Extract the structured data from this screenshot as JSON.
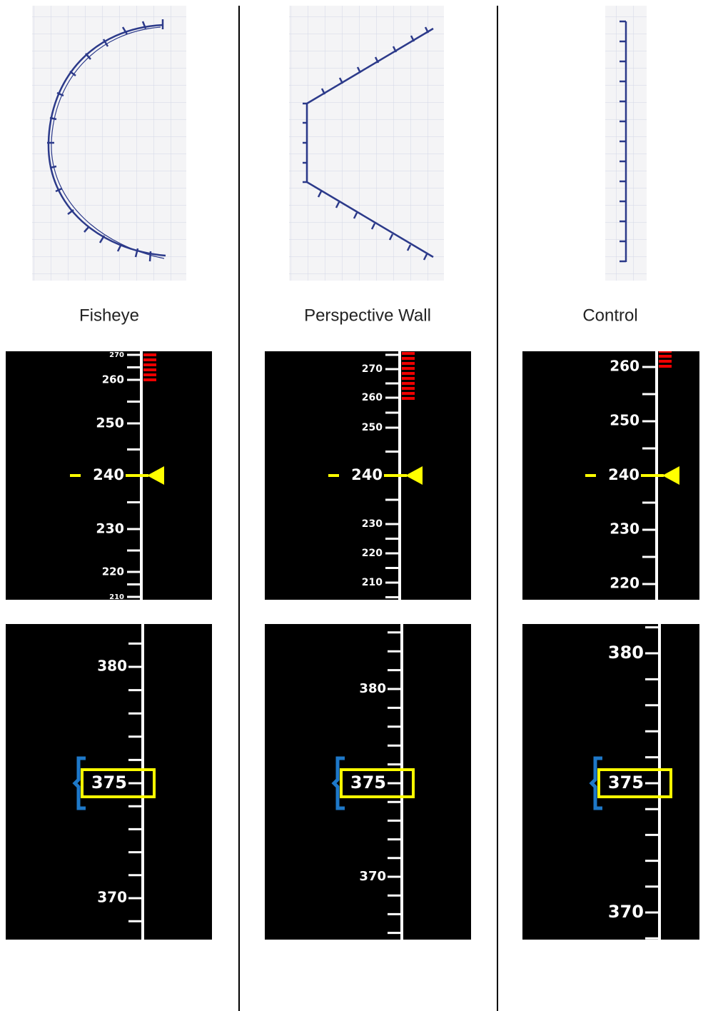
{
  "columns": [
    {
      "label": "Fisheye",
      "speed_tape": {
        "labels": [
          "270",
          "260",
          "250",
          "240",
          "230",
          "220",
          "210"
        ]
      },
      "altitude_tape": {
        "labels": [
          "380",
          "375",
          "370"
        ]
      }
    },
    {
      "label": "Perspective Wall",
      "speed_tape": {
        "labels": [
          "270",
          "260",
          "250",
          "240",
          "230",
          "220",
          "210"
        ]
      },
      "altitude_tape": {
        "labels": [
          "380",
          "375",
          "370"
        ]
      }
    },
    {
      "label": "Control",
      "speed_tape": {
        "labels": [
          "260",
          "250",
          "240",
          "230",
          "220"
        ]
      },
      "altitude_tape": {
        "labels": [
          "380",
          "375",
          "370"
        ]
      }
    }
  ]
}
